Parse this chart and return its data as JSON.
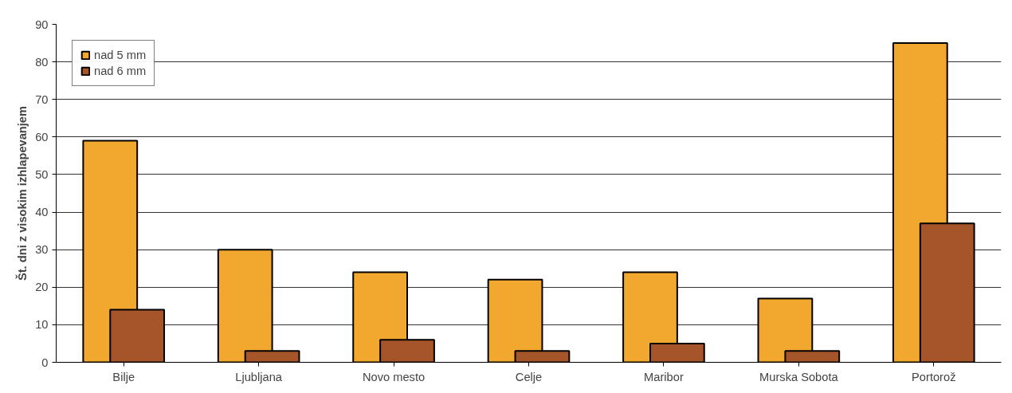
{
  "chart_data": {
    "type": "bar",
    "ylabel": "Št. dni z visokim izhlapevanjem",
    "categories": [
      "Bilje",
      "Ljubljana",
      "Novo mesto",
      "Celje",
      "Maribor",
      "Murska Sobota",
      "Portorož"
    ],
    "series": [
      {
        "name": "nad 5 mm",
        "color": "#f2a72e",
        "values": [
          59,
          30,
          24,
          22,
          24,
          17,
          85
        ]
      },
      {
        "name": "nad 6 mm",
        "color": "#a6542a",
        "values": [
          14,
          3,
          6,
          3,
          5,
          3,
          37
        ]
      }
    ],
    "ylim": [
      0,
      90
    ],
    "yticks": [
      0,
      10,
      20,
      30,
      40,
      50,
      60,
      70,
      80,
      90
    ],
    "grid": "y",
    "legend": "top left"
  }
}
